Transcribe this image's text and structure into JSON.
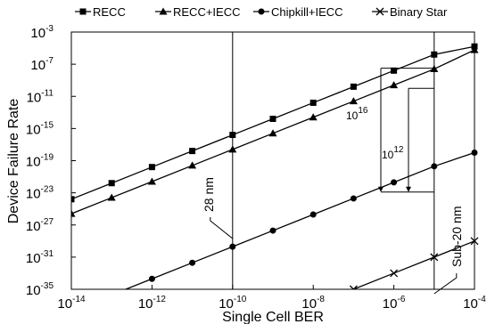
{
  "chart_data": {
    "type": "line",
    "xlabel": "Single Cell BER",
    "ylabel": "Device Failure Rate",
    "x_scale": "log",
    "y_scale": "log",
    "xlim": [
      1e-14,
      0.0001
    ],
    "ylim": [
      1e-35,
      0.001
    ],
    "x_ticks": [
      {
        "base": "10",
        "exp": "-14",
        "v": -14
      },
      {
        "base": "10",
        "exp": "-12",
        "v": -12
      },
      {
        "base": "10",
        "exp": "-10",
        "v": -10
      },
      {
        "base": "10",
        "exp": "-8",
        "v": -8
      },
      {
        "base": "10",
        "exp": "-6",
        "v": -6
      },
      {
        "base": "10",
        "exp": "-4",
        "v": -4
      }
    ],
    "y_ticks": [
      {
        "base": "10",
        "exp": "-3",
        "v": -3
      },
      {
        "base": "10",
        "exp": "-7",
        "v": -7
      },
      {
        "base": "10",
        "exp": "-11",
        "v": -11
      },
      {
        "base": "10",
        "exp": "-15",
        "v": -15
      },
      {
        "base": "10",
        "exp": "-19",
        "v": -19
      },
      {
        "base": "10",
        "exp": "-23",
        "v": -23
      },
      {
        "base": "10",
        "exp": "-27",
        "v": -27
      },
      {
        "base": "10",
        "exp": "-31",
        "v": -31
      },
      {
        "base": "10",
        "exp": "-35",
        "v": -35
      }
    ],
    "grid": false,
    "legend_position": "top",
    "series": [
      {
        "name": "RECC",
        "marker": "square",
        "x": [
          1e-14,
          1e-13,
          1e-12,
          1e-11,
          1e-10,
          1e-09,
          1e-08,
          1e-07,
          1e-06,
          1e-05,
          0.0001
        ],
        "y": [
          1.6e-24,
          1.6e-22,
          1.6e-20,
          1.6e-18,
          1.6e-16,
          1.6e-14,
          1.6e-12,
          1.6e-10,
          1.6e-08,
          1.6e-06,
          1.6e-05
        ]
      },
      {
        "name": "RECC+IECC",
        "marker": "triangle",
        "x": [
          1e-14,
          1e-13,
          1e-12,
          1e-11,
          1e-10,
          1e-09,
          1e-08,
          1e-07,
          1e-06,
          1e-05,
          0.0001
        ],
        "y": [
          2.5e-26,
          2.5e-24,
          2.5e-22,
          2.5e-20,
          2.5e-18,
          2.5e-16,
          2.5e-14,
          2.5e-12,
          2.5e-10,
          2.5e-08,
          6e-06
        ]
      },
      {
        "name": "Chipkill+IECC",
        "marker": "circle",
        "x": [
          1e-12,
          1e-11,
          1e-10,
          1e-09,
          1e-08,
          1e-07,
          1e-06,
          1e-05,
          0.0001
        ],
        "y": [
          2e-34,
          2e-32,
          2e-30,
          2e-28,
          2e-26,
          2e-24,
          2e-22,
          2e-20,
          1e-18
        ]
      },
      {
        "name": "Binary Star",
        "marker": "x",
        "x": [
          1e-07,
          1e-06,
          1e-05,
          0.0001
        ],
        "y": [
          1e-35,
          1e-33,
          1e-31,
          1e-29
        ]
      }
    ],
    "annotations": {
      "vline_28nm": {
        "x": 1e-10,
        "label": "28 nm"
      },
      "vline_sub20": {
        "x": 1e-05,
        "label": "Sub-20 nm"
      },
      "ratio_1": {
        "base": "10",
        "exp": "16"
      },
      "ratio_2": {
        "base": "10",
        "exp": "12"
      }
    }
  }
}
